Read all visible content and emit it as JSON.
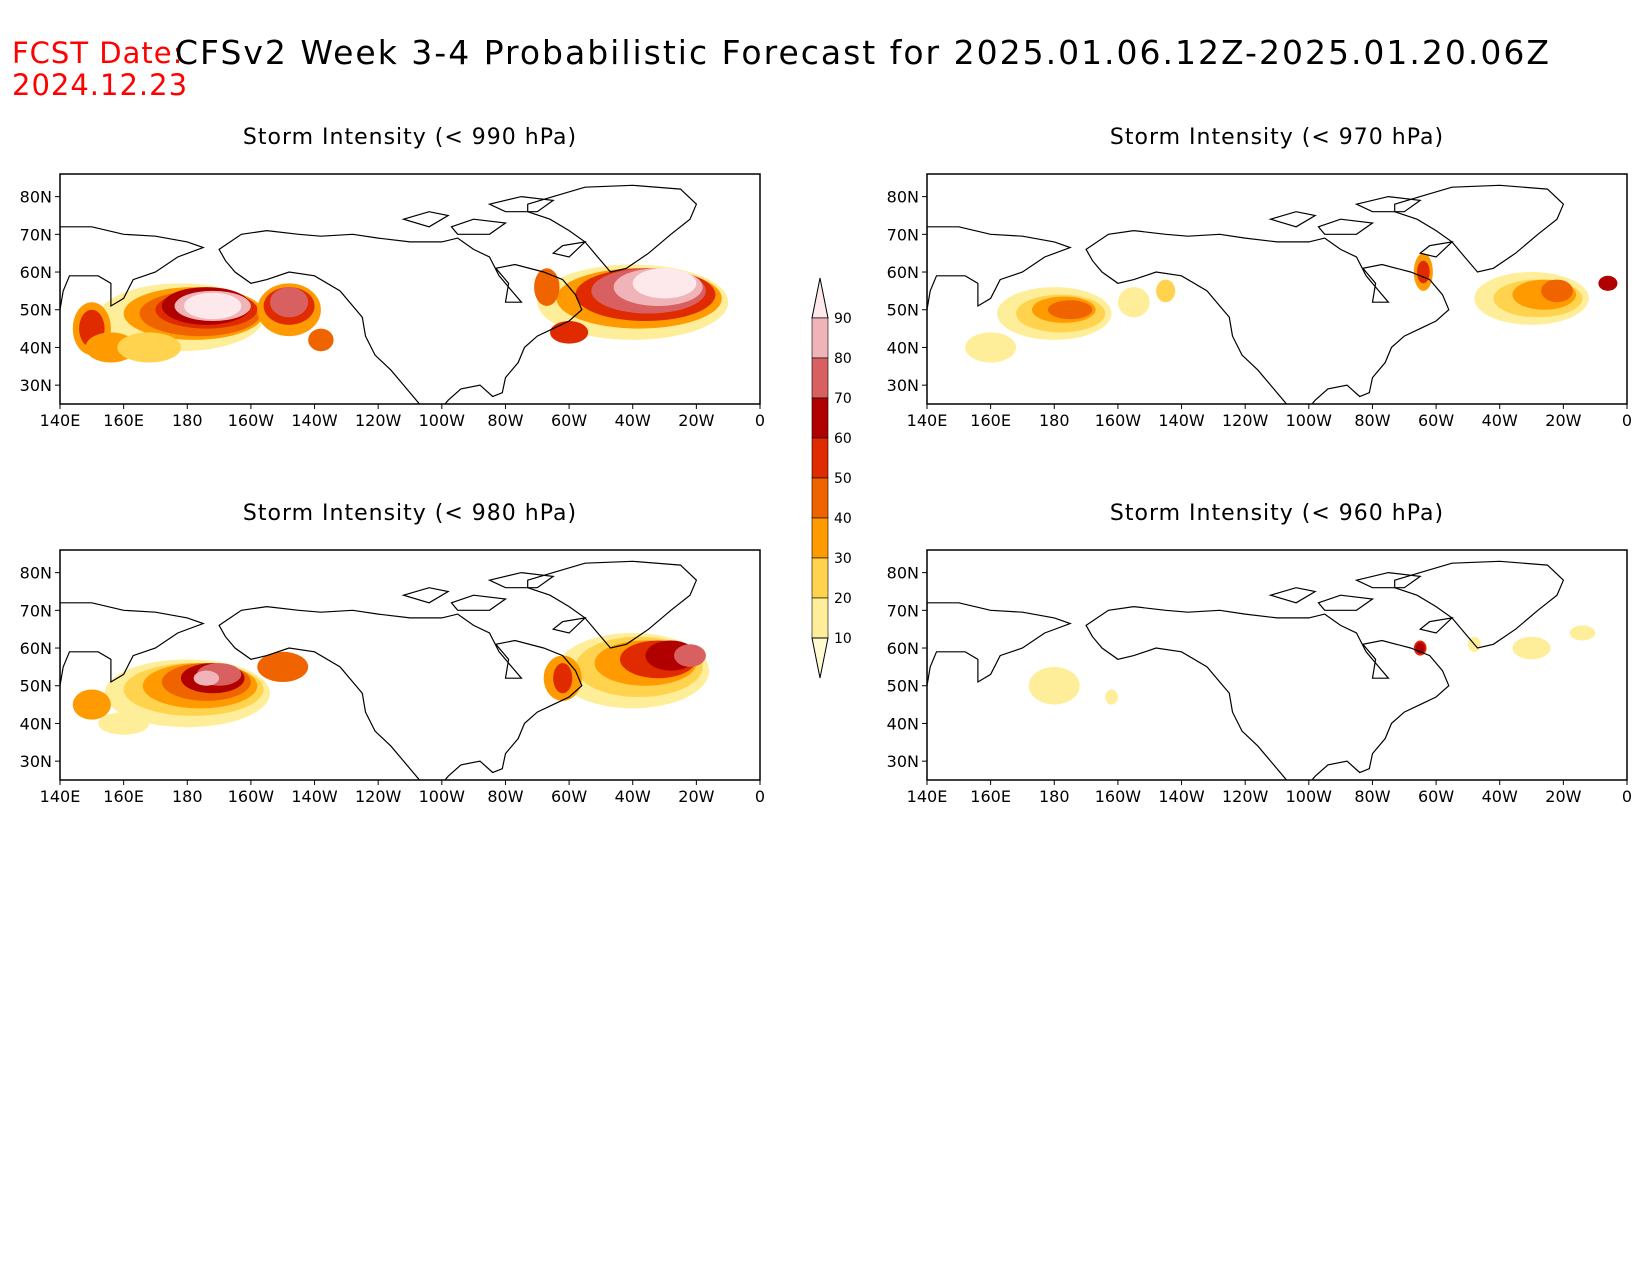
{
  "header": {
    "fcst_label": "FCST Date:",
    "fcst_date": "2024.12.23",
    "title": "CFSv2 Week 3-4 Probabilistic Forecast for 2025.01.06.12Z-2025.01.20.06Z"
  },
  "map_axes": {
    "lon_labels": [
      "140E",
      "160E",
      "180",
      "160W",
      "140W",
      "120W",
      "100W",
      "80W",
      "60W",
      "40W",
      "20W",
      "0"
    ],
    "lat_labels": [
      "80N",
      "70N",
      "60N",
      "50N",
      "40N",
      "30N"
    ]
  },
  "panels": [
    {
      "title": "Storm Intensity (< 990 hPa)",
      "threshold_hpa": 990
    },
    {
      "title": "Storm Intensity (< 970 hPa)",
      "threshold_hpa": 970
    },
    {
      "title": "Storm Intensity (< 980 hPa)",
      "threshold_hpa": 980
    },
    {
      "title": "Storm Intensity (< 960 hPa)",
      "threshold_hpa": 960
    }
  ],
  "colorbar": {
    "levels": [
      "10",
      "20",
      "30",
      "40",
      "50",
      "60",
      "70",
      "80",
      "90"
    ],
    "colors": [
      "#fffbd0",
      "#ffee99",
      "#ffd34d",
      "#ff9a00",
      "#f06400",
      "#e02a00",
      "#b00000",
      "#d86060",
      "#f0b4b8",
      "#fde8ec"
    ]
  }
}
